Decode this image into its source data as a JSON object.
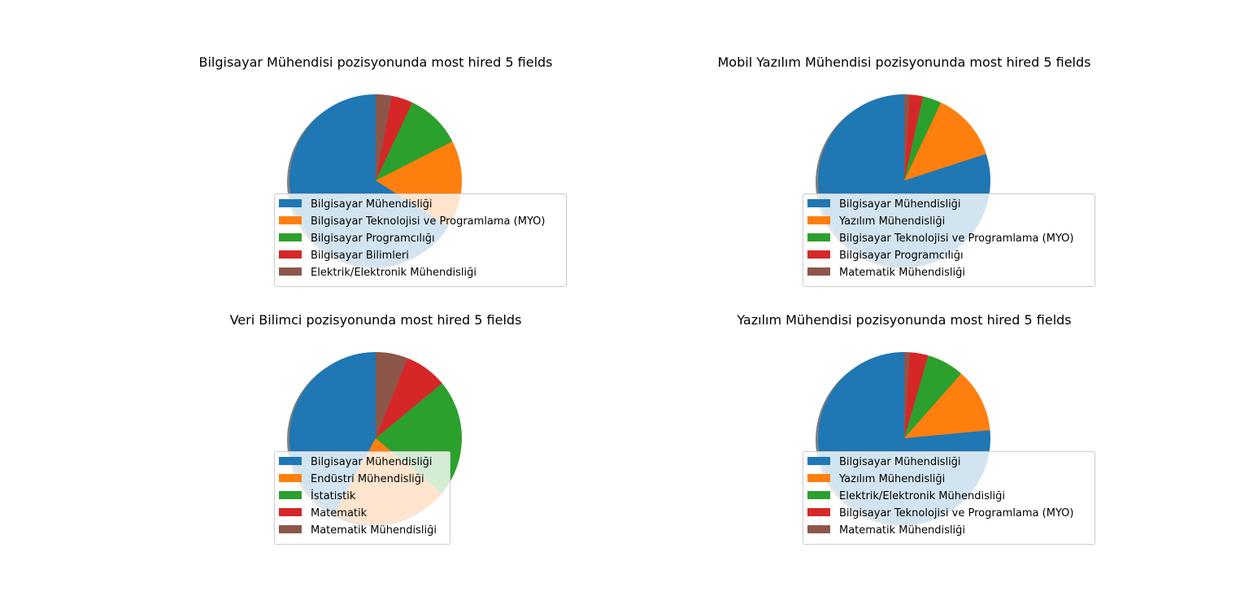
{
  "chart_data": [
    {
      "type": "pie",
      "title": "Bilgisayar Mühendisi pozisyonunda most hired 5 fields",
      "labels": [
        "Bilgisayar Mühendisliği",
        "Bilgisayar Teknolojisi ve Programlama (MYO)",
        "Bilgisayar Programcılığı",
        "Bilgisayar Bilimleri",
        "Elektrik/Elektronik Mühendisliği"
      ],
      "values": [
        66.0,
        16.5,
        10.5,
        4.0,
        3.0
      ],
      "colors": [
        "#1f77b4",
        "#ff7f0e",
        "#2ca02c",
        "#d62728",
        "#8c564b"
      ],
      "shadow": true,
      "start_angle": 90,
      "counterclockwise": true,
      "legend_loc": "lower center"
    },
    {
      "type": "pie",
      "title": "Mobil Yazılım Mühendisi pozisyonunda most hired 5 fields",
      "labels": [
        "Bilgisayar Mühendisliği",
        "Yazılım Mühendisliği",
        "Bilgisayar Teknolojisi ve Programlama (MYO)",
        "Bilgisayar Programcılığı",
        "Matematik Mühendisliği"
      ],
      "values": [
        80.0,
        13.0,
        3.5,
        2.5,
        1.0
      ],
      "colors": [
        "#1f77b4",
        "#ff7f0e",
        "#2ca02c",
        "#d62728",
        "#8c564b"
      ],
      "shadow": true,
      "start_angle": 90,
      "counterclockwise": true,
      "legend_loc": "lower center"
    },
    {
      "type": "pie",
      "title": "Veri Bilimci pozisyonunda most hired 5 fields",
      "labels": [
        "Bilgisayar Mühendisliği",
        "Endüstri Mühendisliği",
        "İstatistik",
        "Matematik",
        "Matematik Mühendisliği"
      ],
      "values": [
        42.0,
        22.0,
        22.0,
        8.0,
        6.0
      ],
      "colors": [
        "#1f77b4",
        "#ff7f0e",
        "#2ca02c",
        "#d62728",
        "#8c564b"
      ],
      "shadow": true,
      "start_angle": 90,
      "counterclockwise": true,
      "legend_loc": "lower center"
    },
    {
      "type": "pie",
      "title": "Yazılım Mühendisi pozisyonunda most hired 5 fields",
      "labels": [
        "Bilgisayar Mühendisliği",
        "Yazılım Mühendisliği",
        "Elektrik/Elektronik Mühendisliği",
        "Bilgisayar Teknolojisi ve Programlama (MYO)",
        "Matematik Mühendisliği"
      ],
      "values": [
        76.5,
        12.0,
        7.0,
        3.5,
        1.0
      ],
      "colors": [
        "#1f77b4",
        "#ff7f0e",
        "#2ca02c",
        "#d62728",
        "#8c564b"
      ],
      "shadow": true,
      "start_angle": 90,
      "counterclockwise": true,
      "legend_loc": "lower center"
    }
  ]
}
